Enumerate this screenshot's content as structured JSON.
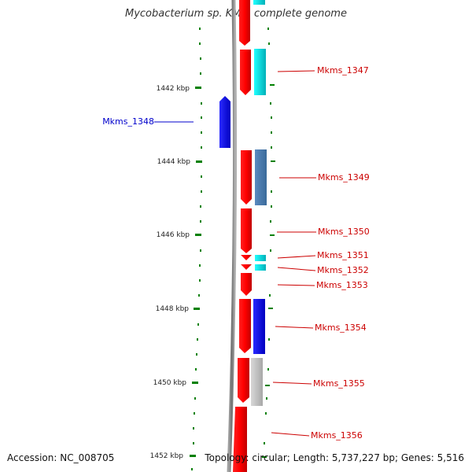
{
  "title": "Mycobacterium sp. KMS, complete genome",
  "accession": "Accession: NC_008705",
  "topology": "Topology: circular; Length: 5,737,227 bp; Genes: 5,516",
  "colors": {
    "backbone": "#808080",
    "kbp_tick": "#008000",
    "label_red": "#cc0000",
    "label_blue": "#0000cc"
  },
  "kbp_ticks": [
    "1442 kbp",
    "1444 kbp",
    "1446 kbp",
    "1448 kbp",
    "1450 kbp",
    "1452 kbp"
  ],
  "gene_labels": [
    {
      "text": "Mkms_1347",
      "color": "red"
    },
    {
      "text": "Mkms_1348",
      "color": "blue"
    },
    {
      "text": "Mkms_1349",
      "color": "red"
    },
    {
      "text": "Mkms_1350",
      "color": "red"
    },
    {
      "text": "Mkms_1351",
      "color": "red"
    },
    {
      "text": "Mkms_1352",
      "color": "red"
    },
    {
      "text": "Mkms_1353",
      "color": "red"
    },
    {
      "text": "Mkms_1354",
      "color": "red"
    },
    {
      "text": "Mkms_1355",
      "color": "red"
    },
    {
      "text": "Mkms_1356",
      "color": "red"
    }
  ]
}
